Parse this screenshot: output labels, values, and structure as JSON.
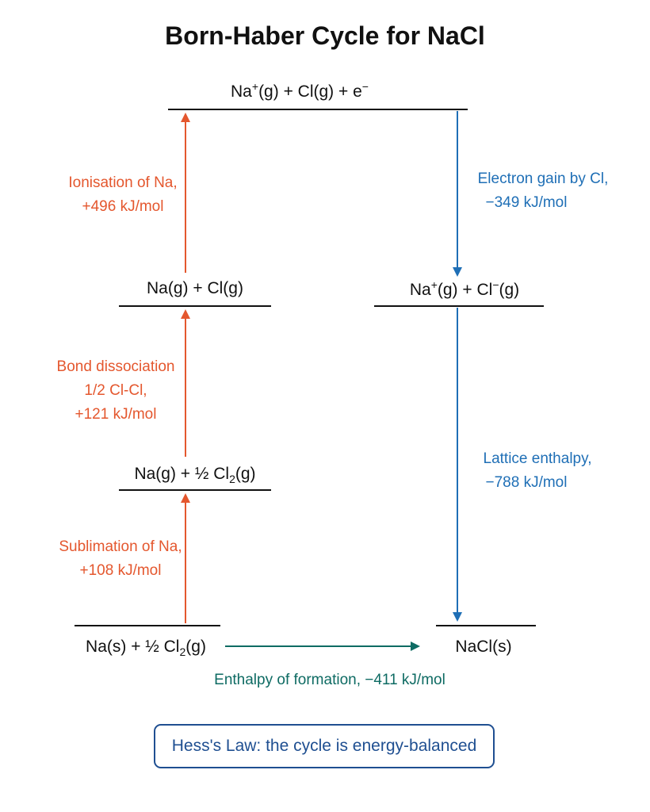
{
  "title": "Born-Haber Cycle for NaCl",
  "levels": {
    "top": {
      "parts": [
        "Na",
        "+",
        "(g) + Cl(g) + e",
        "−"
      ]
    },
    "mid_left": {
      "text": "Na(g) + Cl(g)"
    },
    "mid_right": {
      "parts": [
        "Na",
        "+",
        "(g) + Cl",
        "−",
        "(g)"
      ]
    },
    "lower_left": {
      "parts": [
        "Na(g) + ½ Cl",
        "2",
        "(g)"
      ]
    },
    "bottom_left": {
      "parts": [
        "Na(s) + ½ Cl",
        "2",
        "(g)"
      ]
    },
    "bottom_right": {
      "text": "NaCl(s)"
    }
  },
  "steps": {
    "ionisation": {
      "line1": "Ionisation of Na,",
      "line2": "+496 kJ/mol"
    },
    "electron_gain": {
      "line1": "Electron gain by Cl,",
      "line2": "−349 kJ/mol"
    },
    "bond_dissociation": {
      "line1": "Bond dissociation",
      "line2": "1/2 Cl-Cl,",
      "line3": "+121 kJ/mol"
    },
    "lattice": {
      "line1": "Lattice enthalpy,",
      "line2": "−788 kJ/mol"
    },
    "sublimation": {
      "line1": "Sublimation of Na,",
      "line2": "+108 kJ/mol"
    },
    "formation": {
      "label": "Enthalpy of formation, −411 kJ/mol"
    }
  },
  "footer": {
    "hess": "Hess's Law: the cycle is energy-balanced"
  },
  "colors": {
    "endothermic": "#e4572e",
    "exothermic": "#1f6fb6",
    "formation": "#0e6b63",
    "box": "#1f4f91"
  }
}
